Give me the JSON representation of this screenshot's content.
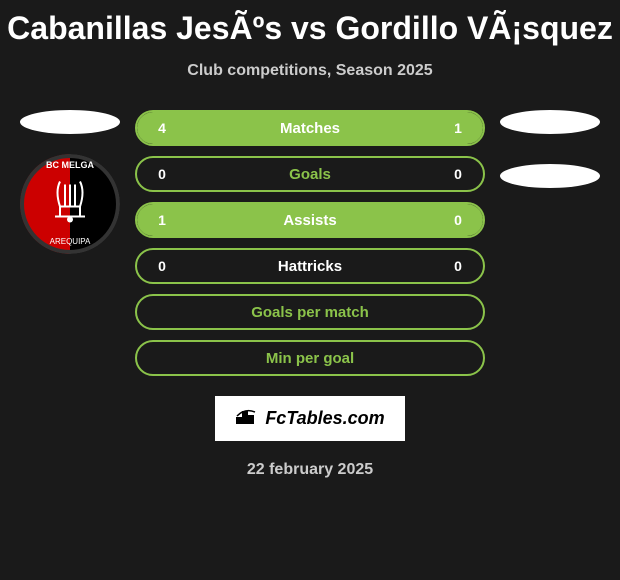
{
  "title": "Cabanillas JesÃºs vs Gordillo VÃ¡squez",
  "subtitle": "Club competitions, Season 2025",
  "club_logo": {
    "top_text": "BC MELGA",
    "bottom_text": "AREQUIPA",
    "left_color": "#cc0000",
    "right_color": "#000000"
  },
  "stats": [
    {
      "label": "Matches",
      "left_value": "4",
      "right_value": "1",
      "border_color": "#8bc34a",
      "fill_color": "#8bc34a",
      "text_color": "#8bc34a",
      "left_fill_pct": 80,
      "right_fill_pct": 20
    },
    {
      "label": "Goals",
      "left_value": "0",
      "right_value": "0",
      "border_color": "#8bc34a",
      "fill_color": "#8bc34a",
      "text_color": "#8bc34a",
      "left_fill_pct": 0,
      "right_fill_pct": 0
    },
    {
      "label": "Assists",
      "left_value": "1",
      "right_value": "0",
      "border_color": "#8bc34a",
      "fill_color": "#8bc34a",
      "text_color": "#8bc34a",
      "left_fill_pct": 100,
      "right_fill_pct": 0
    },
    {
      "label": "Hattricks",
      "left_value": "0",
      "right_value": "0",
      "border_color": "#8bc34a",
      "fill_color": "#8bc34a",
      "text_color": "#ffffff",
      "left_fill_pct": 0,
      "right_fill_pct": 0
    },
    {
      "label": "Goals per match",
      "left_value": "",
      "right_value": "",
      "border_color": "#8bc34a",
      "fill_color": "#8bc34a",
      "text_color": "#8bc34a",
      "left_fill_pct": 0,
      "right_fill_pct": 0
    },
    {
      "label": "Min per goal",
      "left_value": "",
      "right_value": "",
      "border_color": "#8bc34a",
      "fill_color": "#8bc34a",
      "text_color": "#8bc34a",
      "left_fill_pct": 0,
      "right_fill_pct": 0
    }
  ],
  "footer_brand": "FcTables.com",
  "footer_date": "22 february 2025",
  "background_color": "#1a1a1a"
}
